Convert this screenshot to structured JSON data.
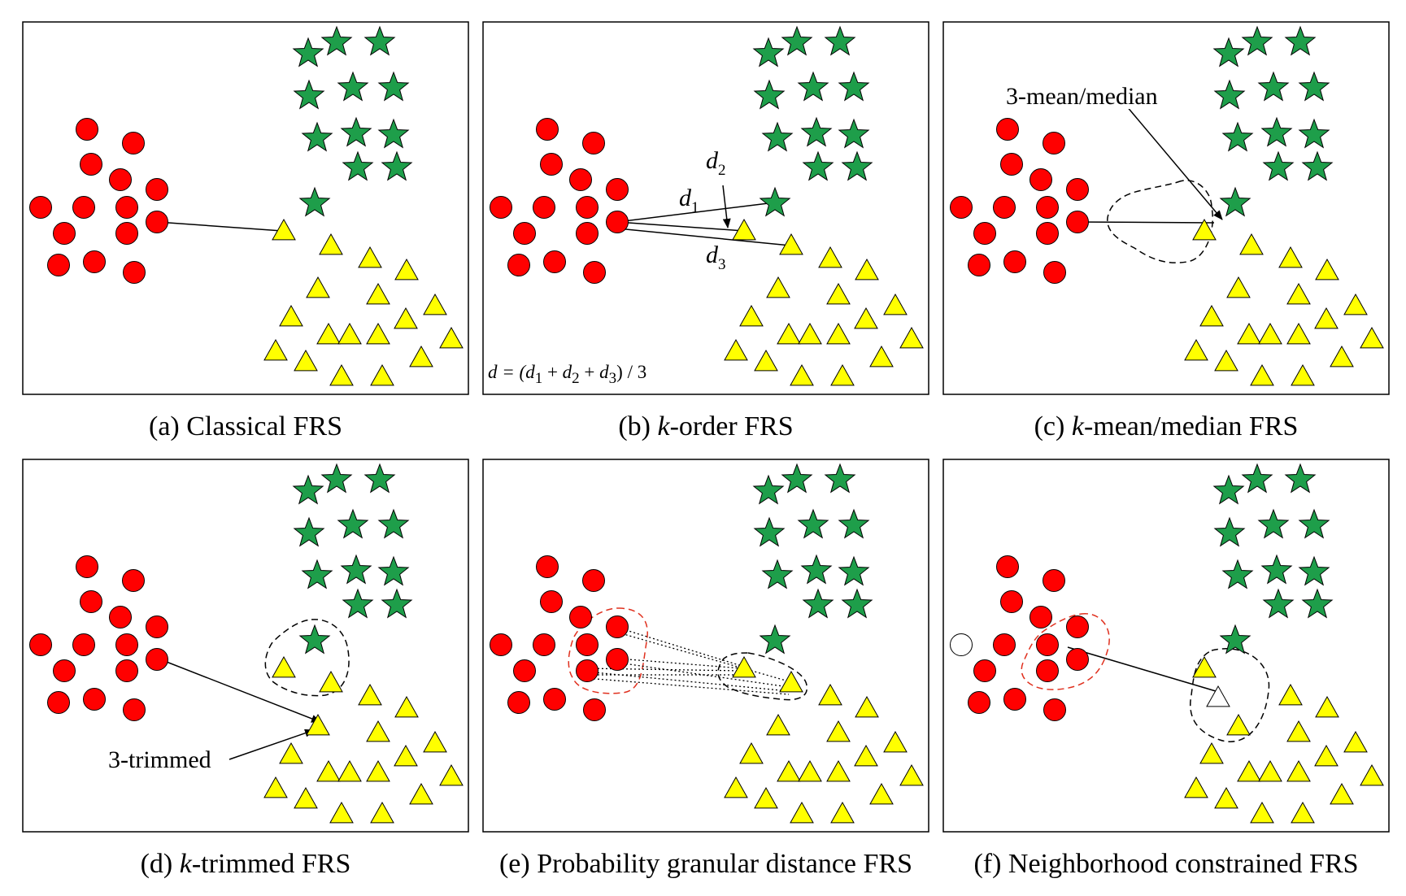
{
  "figure": {
    "panels": [
      {
        "id": "a",
        "caption_prefix": "(a) ",
        "caption_italic": "",
        "caption_rest": "Classical FRS"
      },
      {
        "id": "b",
        "caption_prefix": "(b) ",
        "caption_italic": "k",
        "caption_rest": "-order FRS"
      },
      {
        "id": "c",
        "caption_prefix": "(c) ",
        "caption_italic": "k",
        "caption_rest": "-mean/median FRS"
      },
      {
        "id": "d",
        "caption_prefix": "(d) ",
        "caption_italic": "k",
        "caption_rest": "-trimmed FRS"
      },
      {
        "id": "e",
        "caption_prefix": "(e) ",
        "caption_italic": "",
        "caption_rest": "Probability granular distance FRS"
      },
      {
        "id": "f",
        "caption_prefix": "(f) ",
        "caption_italic": "",
        "caption_rest": "Neighborhood constrained FRS"
      }
    ],
    "annotations": {
      "b_d": "d",
      "b_sub1": "1",
      "b_sub2": "2",
      "b_sub3": "3",
      "b_formula_lhs": "d = (",
      "b_formula_d1": "d",
      "b_formula_plus1": " + ",
      "b_formula_d2": "d",
      "b_formula_plus2": " + ",
      "b_formula_d3": "d",
      "b_formula_rhs": ") / 3",
      "c_label": "3-mean/median",
      "d_label": "3-trimmed"
    },
    "colors": {
      "circle": "#ff0000",
      "star": "#1e9e4a",
      "triangle": "#ffff00",
      "outline": "#000000",
      "red_dash": "#e0301e"
    }
  }
}
